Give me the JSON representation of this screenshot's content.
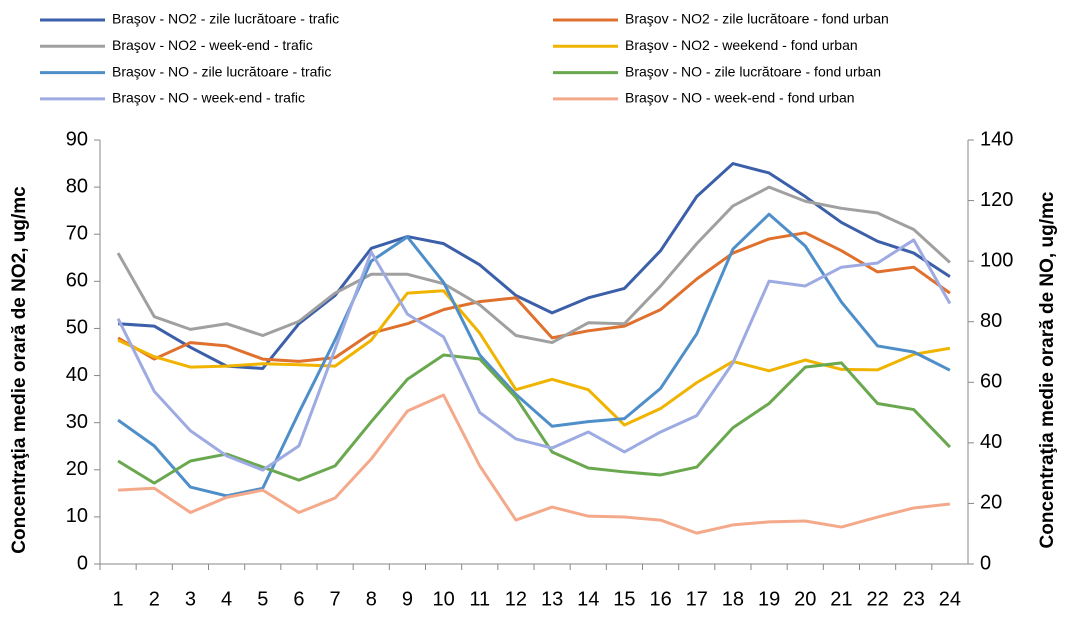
{
  "chart_data": {
    "type": "line",
    "y_label": "Concentraţia medie orară de NO2, ug/mc",
    "y2_label": "Concentraţia medie orară de NO, ug/mc",
    "categories": [
      "1",
      "2",
      "3",
      "4",
      "5",
      "6",
      "7",
      "8",
      "9",
      "10",
      "11",
      "12",
      "13",
      "14",
      "15",
      "16",
      "17",
      "18",
      "19",
      "20",
      "21",
      "22",
      "23",
      "24"
    ],
    "ylim": [
      0,
      90
    ],
    "yticks": [
      0,
      10,
      20,
      30,
      40,
      50,
      60,
      70,
      80,
      90
    ],
    "y2lim": [
      0,
      140
    ],
    "y2ticks": [
      0,
      20,
      40,
      60,
      80,
      100,
      120,
      140
    ],
    "grid": false,
    "series": [
      {
        "name": "Braşov - NO2 - zile lucrătoare - trafic",
        "color": "#3b5fa8",
        "values": [
          51,
          50.5,
          46,
          42,
          41.5,
          51,
          57,
          67,
          69.5,
          68,
          63.5,
          57,
          53.3,
          56.5,
          58.5,
          66.5,
          78,
          85,
          83,
          78,
          72.5,
          68.5,
          66,
          61
        ]
      },
      {
        "name": "Braşov - NO2 - zile lucrătoare - fond urban",
        "color": "#e0702d",
        "values": [
          48,
          43.5,
          47,
          46.3,
          43.5,
          43,
          43.8,
          49,
          51,
          54,
          55.7,
          56.5,
          48,
          49.5,
          50.5,
          54,
          60.5,
          66,
          69,
          70.3,
          66.5,
          62,
          63,
          57.5
        ]
      },
      {
        "name": "Braşov - NO2 - week-end - trafic",
        "color": "#a0a0a0",
        "values": [
          66,
          52.5,
          49.8,
          51,
          48.5,
          51.5,
          57.5,
          61.5,
          61.5,
          59.5,
          55,
          48.5,
          47,
          51.2,
          51,
          59,
          68,
          76,
          80,
          77,
          75.5,
          74.5,
          71,
          64
        ]
      },
      {
        "name": "Braşov - NO2 - weekend - fond urban",
        "color": "#f0b400",
        "values": [
          47.5,
          44,
          41.8,
          42,
          42.5,
          42.3,
          42,
          47.5,
          57.5,
          58,
          49,
          37,
          39.2,
          37,
          29.5,
          33,
          38.5,
          43,
          41,
          43.3,
          41.3,
          41.2,
          44.5,
          45.8
        ]
      },
      {
        "name": "Braşov - NO - zile lucrătoare - trafic",
        "color": "#4f8fc9",
        "axis": "y2",
        "values": [
          47.5,
          39,
          25.4,
          22.5,
          25,
          50,
          74,
          100,
          108,
          93,
          69,
          56,
          45.5,
          47,
          48,
          58,
          76,
          104,
          115.5,
          105,
          86.5,
          72,
          70,
          64
        ]
      },
      {
        "name": "Braşov - NO - zile lucrătoare - fond urban",
        "color": "#6aa84f",
        "axis": "y2",
        "values": [
          34,
          26.7,
          34,
          36.3,
          32,
          27.7,
          32.4,
          47,
          61,
          69,
          67.7,
          55,
          37,
          31.7,
          30.4,
          29.4,
          32,
          45,
          53,
          65,
          66.4,
          53,
          51,
          38.6
        ]
      },
      {
        "name": "Braşov - NO - week-end - trafic",
        "color": "#9dabe2",
        "axis": "y2",
        "values": [
          81,
          57,
          44,
          35.7,
          31,
          39,
          71,
          103,
          82.5,
          75,
          50,
          41.3,
          38.3,
          43.6,
          37,
          43.6,
          49,
          66.4,
          93.4,
          91.8,
          98,
          99.4,
          107,
          86
        ]
      },
      {
        "name": "Braşov - NO - week-end - fond urban",
        "color": "#f4a98a",
        "axis": "y2",
        "values": [
          24.4,
          25,
          17,
          22,
          24.4,
          17,
          21.8,
          34.7,
          50.5,
          55.8,
          32.4,
          14.5,
          18.8,
          15.8,
          15.5,
          14.5,
          10.2,
          12.9,
          13.9,
          14.2,
          12.2,
          15.5,
          18.5,
          19.8
        ]
      }
    ]
  }
}
